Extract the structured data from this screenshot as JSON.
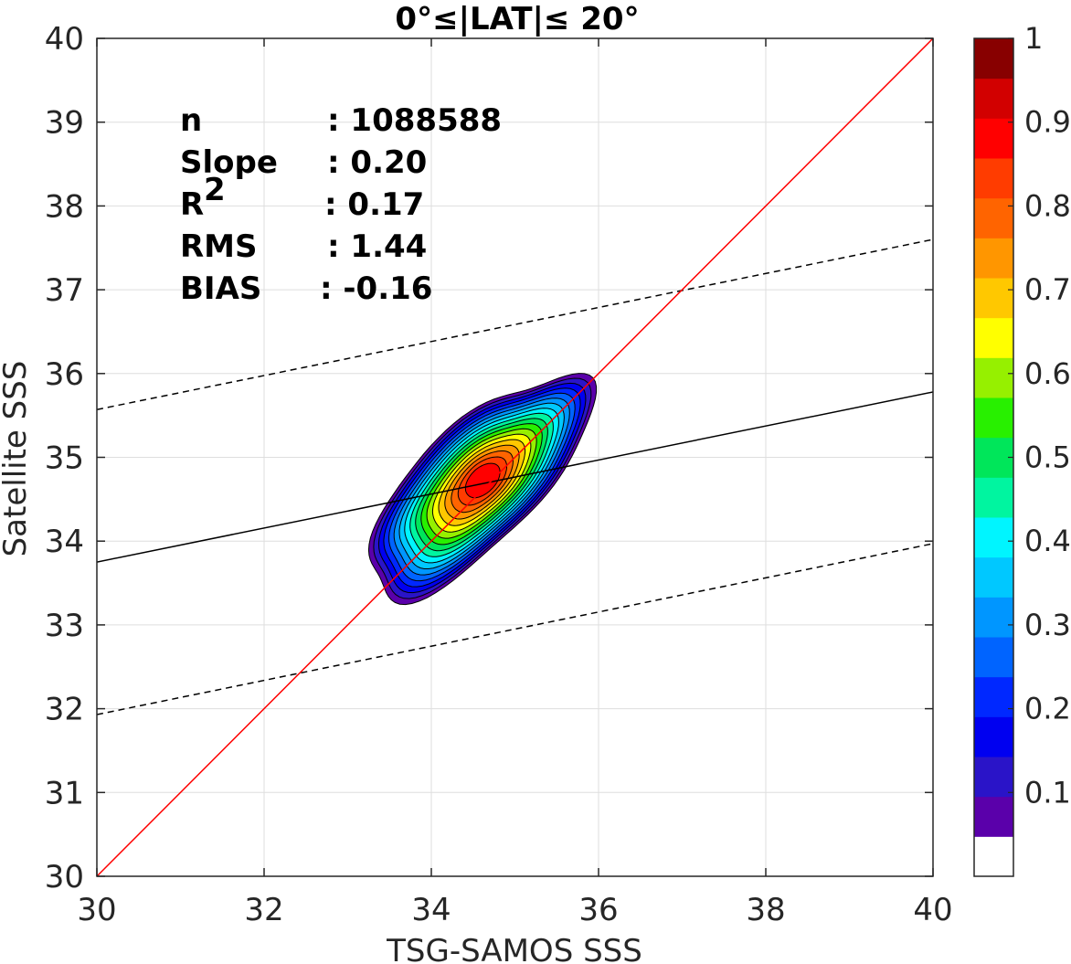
{
  "chart_data": {
    "type": "contour",
    "title": "0°≤|LAT|≤ 20°",
    "xlabel": "TSG-SAMOS SSS",
    "ylabel": "Satellite SSS",
    "xlim": [
      30,
      40
    ],
    "ylim": [
      30,
      40
    ],
    "xticks": [
      "30",
      "32",
      "34",
      "36",
      "38",
      "40"
    ],
    "yticks": [
      "30",
      "31",
      "32",
      "33",
      "34",
      "35",
      "36",
      "37",
      "38",
      "39",
      "40"
    ],
    "grid": true,
    "stats": [
      {
        "label": "n",
        "value": ": 1088588"
      },
      {
        "label": "Slope",
        "value": ": 0.20"
      },
      {
        "label": "R",
        "sup": "2",
        "value": ": 0.17"
      },
      {
        "label": "RMS",
        "value": ": 1.44"
      },
      {
        "label": "BIAS",
        "value": ": -0.16"
      }
    ],
    "lines": {
      "one_to_one": {
        "color": "#ff0000",
        "points": [
          [
            30,
            30
          ],
          [
            40,
            40
          ]
        ]
      },
      "fit": {
        "color": "#000000",
        "points": [
          [
            30,
            33.75
          ],
          [
            40,
            35.78
          ]
        ]
      },
      "fit_plus_2rms": {
        "color": "#000000",
        "dashed": true,
        "points": [
          [
            30,
            35.57
          ],
          [
            40,
            37.6
          ]
        ]
      },
      "fit_minus_2rms": {
        "color": "#000000",
        "dashed": true,
        "points": [
          [
            30,
            31.93
          ],
          [
            40,
            33.97
          ]
        ]
      }
    },
    "density_contours": {
      "center": [
        34.62,
        34.73
      ],
      "levels": [
        0.05,
        0.1,
        0.15,
        0.2,
        0.25,
        0.3,
        0.35,
        0.4,
        0.45,
        0.5,
        0.55,
        0.6,
        0.65,
        0.7,
        0.75,
        0.8,
        0.85,
        0.9,
        0.95
      ],
      "highest_level": 0.9
    },
    "colorbar": {
      "range": [
        0,
        1
      ],
      "tick_labels": [
        "0.1",
        "0.2",
        "0.3",
        "0.4",
        "0.5",
        "0.6",
        "0.7",
        "0.8",
        "0.9",
        "1"
      ],
      "colors": [
        "#ffffff",
        "#5a00aa",
        "#2a14c8",
        "#0000f0",
        "#0028ff",
        "#0064ff",
        "#0096ff",
        "#00c8ff",
        "#00f5ff",
        "#00f5a0",
        "#00e65a",
        "#28f000",
        "#96f000",
        "#ffff00",
        "#ffc800",
        "#ff9600",
        "#ff6400",
        "#ff3c00",
        "#ff0000",
        "#d20000",
        "#880000"
      ]
    }
  }
}
